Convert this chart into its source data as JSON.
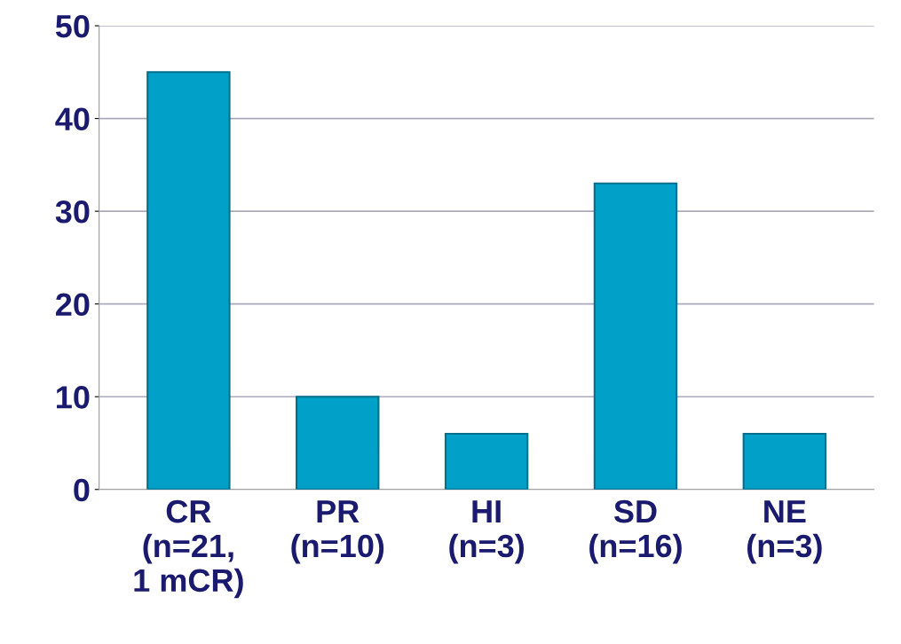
{
  "chart_data": {
    "type": "bar",
    "categories": [
      "CR\n(n=21,\n1 mCR)",
      "PR\n(n=10)",
      "HI\n(n=3)",
      "SD\n(n=16)",
      "NE\n(n=3)"
    ],
    "values": [
      45,
      10,
      6,
      33,
      6
    ],
    "color": "#00a0c8",
    "ylim": [
      0,
      50
    ],
    "yticks": [
      0,
      10,
      20,
      30,
      40,
      50
    ],
    "grid": "y"
  }
}
